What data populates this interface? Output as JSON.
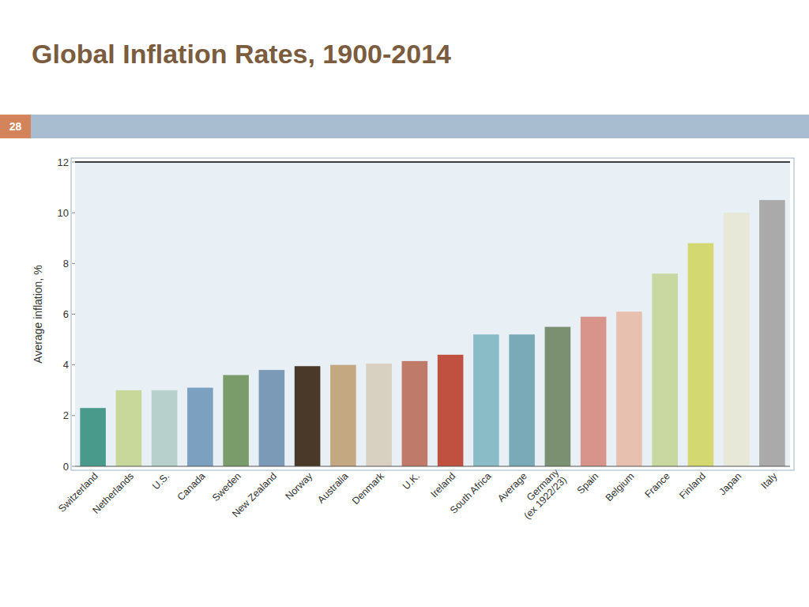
{
  "chart_data": {
    "type": "bar",
    "title": "Global Inflation Rates, 1900-2014",
    "ylabel": "Average inflation, %",
    "annotations": [
      "28"
    ],
    "categories": [
      "Switzerland",
      "Netherlands",
      "U.S.",
      "Canada",
      "Sweden",
      "New Zealand",
      "Norway",
      "Australia",
      "Denmark",
      "U.K.",
      "Ireland",
      "South Africa",
      "Average",
      "Germany\n(ex 1922/23)",
      "Spain",
      "Belgium",
      "France",
      "Finland",
      "Japan",
      "Italy"
    ],
    "values": [
      2.3,
      3.0,
      3.0,
      3.1,
      3.6,
      3.8,
      3.95,
      4.0,
      4.05,
      4.15,
      4.4,
      5.2,
      5.2,
      5.5,
      5.9,
      6.1,
      7.6,
      8.8,
      10.0,
      10.5
    ],
    "colors": [
      "#4A9A8C",
      "#C8D89A",
      "#B8D0CC",
      "#7BA0C0",
      "#7A9C6A",
      "#7A9AB8",
      "#4A3828",
      "#C4A882",
      "#D8D0C0",
      "#C07A6A",
      "#C05040",
      "#8ABCC8",
      "#7AAAB8",
      "#7A9070",
      "#D8948A",
      "#E8C0B0",
      "#C8D8A0",
      "#D4D870",
      "#E8E8D8",
      "#AAAAAA"
    ],
    "ylim": [
      0,
      12
    ],
    "yticks": [
      0,
      2,
      4,
      6,
      8,
      10,
      12
    ],
    "grid": false
  }
}
